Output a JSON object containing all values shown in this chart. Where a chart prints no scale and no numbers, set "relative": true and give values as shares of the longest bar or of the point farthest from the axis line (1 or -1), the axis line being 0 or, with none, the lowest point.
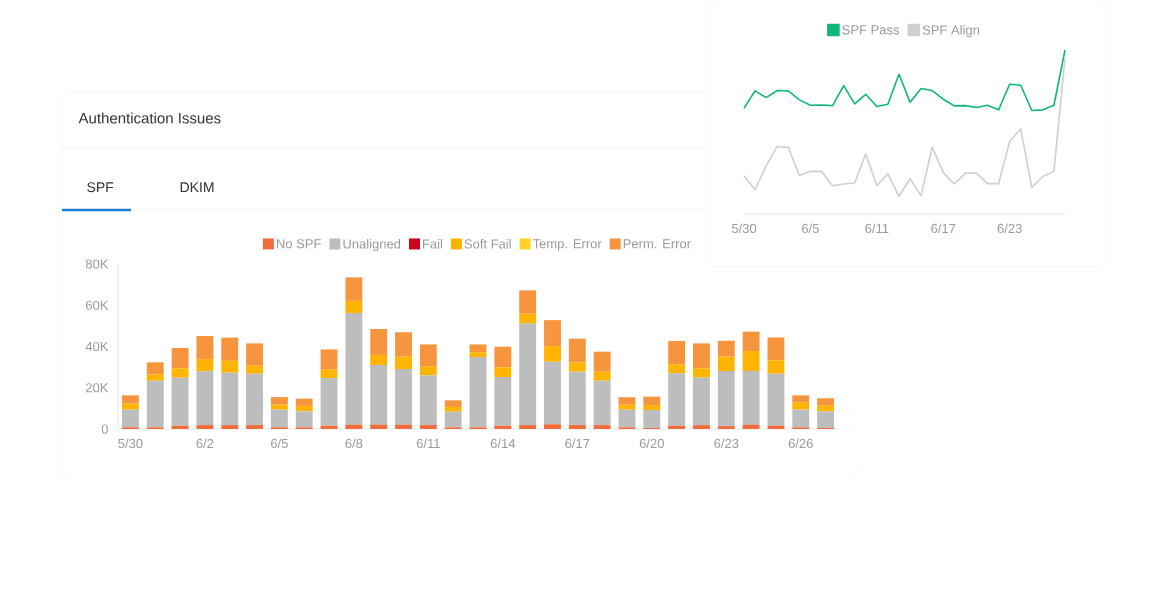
{
  "chart_data": [
    {
      "type": "bar",
      "title": "Authentication Issues",
      "annotations": [
        "SPF",
        "DKIM"
      ],
      "categories": [
        "5/30",
        null,
        null,
        "6/2",
        null,
        null,
        "6/5",
        null,
        null,
        "6/8",
        null,
        null,
        "6/11",
        null,
        null,
        "6/14",
        null,
        null,
        "6/17",
        null,
        null,
        "6/20",
        null,
        null,
        "6/23",
        null,
        null,
        "6/26",
        null
      ],
      "stacked": true,
      "legend": "top",
      "ylim": [
        0,
        80000
      ],
      "yticks": [
        0,
        {
          "value": 20000,
          "label": "20K"
        },
        {
          "value": 40000,
          "label": "40K"
        },
        {
          "value": 60000,
          "label": "60K"
        },
        {
          "value": 80000,
          "label": "80K"
        }
      ],
      "series": [
        {
          "name": "No SPF",
          "color": "#f26b3a",
          "values": [
            800,
            800,
            1600,
            1900,
            1900,
            1900,
            800,
            800,
            1600,
            2100,
            2100,
            2100,
            1900,
            800,
            800,
            1600,
            1900,
            2300,
            1900,
            1900,
            800,
            500,
            1600,
            1900,
            1400,
            2100,
            1600,
            800,
            500
          ]
        },
        {
          "name": "Unaligned",
          "color": "#bdbdbd",
          "values": [
            8600,
            22600,
            23300,
            26100,
            25400,
            24900,
            8600,
            7800,
            23100,
            54100,
            28900,
            27000,
            24100,
            7600,
            34100,
            23600,
            49200,
            30300,
            25900,
            21500,
            8600,
            8700,
            25400,
            23000,
            26700,
            26000,
            25200,
            8600,
            8100
          ]
        },
        {
          "name": "Fail",
          "color": "#d0021b",
          "values": [
            0,
            0,
            0,
            0,
            0,
            0,
            0,
            0,
            0,
            0,
            0,
            0,
            0,
            0,
            0,
            0,
            0,
            0,
            0,
            0,
            0,
            0,
            0,
            0,
            0,
            0,
            0,
            0,
            0
          ]
        },
        {
          "name": "Soft Fail",
          "color": "#ffb400",
          "values": [
            2900,
            3100,
            4500,
            5900,
            5800,
            3900,
            2400,
            2600,
            4100,
            5900,
            4900,
            6000,
            4200,
            2300,
            2300,
            4700,
            4800,
            7600,
            4500,
            4400,
            2400,
            2400,
            4400,
            4500,
            7000,
            9700,
            6500,
            3500,
            2700
          ]
        },
        {
          "name": "Temp. Error",
          "color": "#ffd026",
          "values": [
            0,
            0,
            0,
            0,
            0,
            0,
            0,
            0,
            0,
            0,
            0,
            0,
            0,
            0,
            0,
            0,
            0,
            0,
            0,
            0,
            0,
            0,
            0,
            0,
            0,
            0,
            0,
            0,
            0
          ]
        },
        {
          "name": "Perm. Error",
          "color": "#f7953e",
          "values": [
            4000,
            5800,
            9900,
            11200,
            11200,
            10800,
            3700,
            3500,
            9800,
            11400,
            12600,
            11800,
            10800,
            3200,
            3800,
            10000,
            11300,
            12600,
            11500,
            9700,
            3600,
            4100,
            11300,
            12100,
            7700,
            9400,
            11100,
            3400,
            3600
          ]
        }
      ]
    },
    {
      "type": "line",
      "relative": true,
      "legend": "top",
      "categories": [
        "5/30",
        null,
        null,
        null,
        null,
        null,
        "6/5",
        null,
        null,
        null,
        null,
        null,
        "6/11",
        null,
        null,
        null,
        null,
        null,
        "6/17",
        null,
        null,
        null,
        null,
        null,
        "6/23",
        null,
        null,
        null,
        null,
        null
      ],
      "series": [
        {
          "name": "SPF Pass",
          "color": "#10b876",
          "values": [
            0.645,
            0.751,
            0.71,
            0.753,
            0.751,
            0.696,
            0.663,
            0.665,
            0.661,
            0.783,
            0.671,
            0.73,
            0.655,
            0.669,
            0.852,
            0.682,
            0.765,
            0.753,
            0.7,
            0.659,
            0.661,
            0.649,
            0.663,
            0.635,
            0.791,
            0.785,
            0.631,
            0.635,
            0.663,
            1.0
          ]
        },
        {
          "name": "SPF Align",
          "color": "#cfcfcf",
          "values": [
            0.233,
            0.148,
            0.294,
            0.412,
            0.406,
            0.235,
            0.26,
            0.26,
            0.172,
            0.183,
            0.189,
            0.367,
            0.172,
            0.245,
            0.108,
            0.215,
            0.112,
            0.408,
            0.254,
            0.183,
            0.249,
            0.249,
            0.185,
            0.185,
            0.442,
            0.519,
            0.162,
            0.229,
            0.26,
            0.949
          ]
        }
      ]
    }
  ]
}
